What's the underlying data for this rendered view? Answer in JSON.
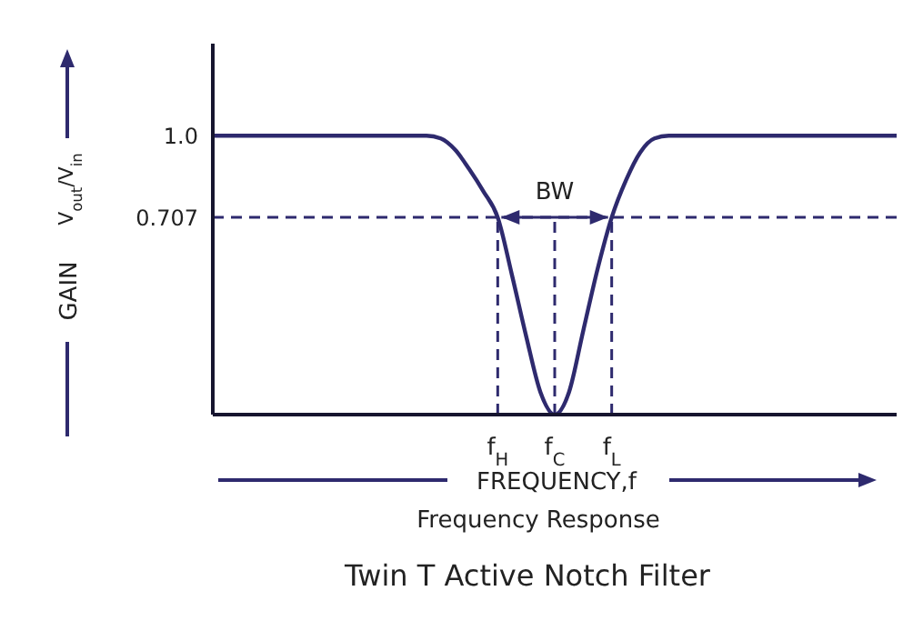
{
  "chart_data": {
    "type": "line",
    "title": "Twin T Active Notch Filter",
    "subtitle": "Frequency Response",
    "xlabel": "FREQUENCY,f",
    "ylabel": "GAIN",
    "annotations": [
      "V$_{out}$/V$_{in}$",
      "BW"
    ],
    "categories": [
      null,
      null,
      null,
      null,
      null,
      null,
      null,
      null,
      null,
      null,
      null,
      null,
      null,
      null,
      null,
      null,
      null,
      null,
      null,
      null,
      "f$_{H}$",
      null,
      null,
      null,
      "f$_{C}$",
      null,
      null,
      null,
      "f$_{L}$",
      null,
      null,
      null,
      null,
      null,
      null,
      null,
      null,
      null,
      null,
      null,
      null,
      null,
      null,
      null,
      null,
      null,
      null,
      null,
      null
    ],
    "series": [
      {
        "color": "#2e2a6e",
        "values": [
          1.0,
          1.0,
          1.0,
          1.0,
          1.0,
          1.0,
          1.0,
          1.0,
          1.0,
          1.0,
          1.0,
          1.0,
          1.0,
          1.0,
          1.0,
          1.0,
          0.99,
          0.95,
          0.88,
          0.8,
          0.707,
          0.5,
          0.28,
          0.08,
          0,
          0.08,
          0.3,
          0.52,
          0.707,
          0.84,
          0.94,
          0.99,
          1.0,
          1.0,
          1.0,
          1.0,
          1.0,
          1.0,
          1.0,
          1.0,
          1.0,
          1.0,
          1.0,
          1.0,
          1.0,
          1.0,
          1.0,
          1.0,
          1.0
        ]
      }
    ],
    "ylim": [
      0,
      1.33
    ],
    "yticks": [
      {
        "value": 0.707,
        "label": "0.707"
      },
      {
        "value": 1,
        "label": "1.0"
      }
    ],
    "ref_lines": [
      {
        "axis": "y",
        "value": 0.707,
        "line_style": "dashed",
        "color": "#2e2a6e"
      },
      {
        "axis": "x",
        "value": "f$_{H}$",
        "line_style": "dashed",
        "color": "#2e2a6e"
      },
      {
        "axis": "x",
        "value": "f$_{C}$",
        "line_style": "dashed",
        "color": "#2e2a6e"
      },
      {
        "axis": "x",
        "value": "f$_{L}$",
        "line_style": "dashed",
        "color": "#2e2a6e"
      }
    ],
    "marker": "none",
    "line_style": "solid"
  }
}
